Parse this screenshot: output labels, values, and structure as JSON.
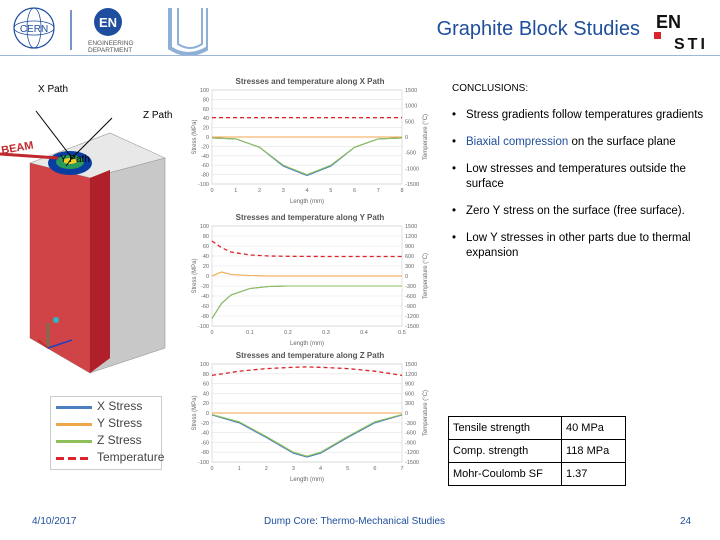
{
  "header": {
    "title": "Graphite Block Studies",
    "logo_cern": "CERN",
    "logo_en": "EN",
    "logo_en_sub1": "ENGINEERING",
    "logo_en_sub2": "DEPARTMENT",
    "logo_ensti_top": "EN",
    "logo_ensti_bottom": "STI"
  },
  "diagram": {
    "x_path": "X Path",
    "z_path": "Z Path",
    "y_path": "Y Path",
    "beam": "BEAM"
  },
  "charts": [
    {
      "title": "Stresses and temperature along X Path",
      "xlabel": "Length (mm)",
      "ylabel_left": "Stress (MPa)",
      "ylabel_right": "Temperature (°C)",
      "left_ticks": [
        "100",
        "80",
        "60",
        "40",
        "20",
        "0",
        "-20",
        "-40",
        "-60",
        "-80",
        "-100"
      ],
      "right_ticks": [
        "1500",
        "1000",
        "500",
        "0",
        "-500",
        "-1000",
        "-1500"
      ],
      "x_ticks": [
        "0",
        "1",
        "2",
        "3",
        "4",
        "5",
        "6",
        "7",
        "8"
      ]
    },
    {
      "title": "Stresses and temperature along Y Path",
      "xlabel": "Length (mm)",
      "ylabel_left": "Stress (MPa)",
      "ylabel_right": "Temperature (°C)",
      "left_ticks": [
        "100",
        "80",
        "60",
        "40",
        "20",
        "0",
        "-20",
        "-40",
        "-60",
        "-80",
        "-100"
      ],
      "right_ticks": [
        "1500",
        "1200",
        "900",
        "600",
        "300",
        "0",
        "-300",
        "-600",
        "-900",
        "-1200",
        "-1500"
      ],
      "x_ticks": [
        "0",
        "0.1",
        "0.2",
        "0.3",
        "0.4",
        "0.5"
      ]
    },
    {
      "title": "Stresses and temperature along Z Path",
      "xlabel": "Length (mm)",
      "ylabel_left": "Stress (MPa)",
      "ylabel_right": "Temperature (°C)",
      "left_ticks": [
        "100",
        "80",
        "60",
        "40",
        "20",
        "0",
        "-20",
        "-40",
        "-60",
        "-80",
        "-100"
      ],
      "right_ticks": [
        "1500",
        "1200",
        "900",
        "600",
        "300",
        "0",
        "-300",
        "-600",
        "-900",
        "-1200",
        "-1500"
      ],
      "x_ticks": [
        "0",
        "1",
        "2",
        "3",
        "4",
        "5",
        "6",
        "7"
      ]
    }
  ],
  "chart_data": [
    {
      "type": "line",
      "title": "Stresses and temperature along X Path",
      "xlabel": "Length (mm)",
      "ylabel": "Stress (MPa)",
      "y2label": "Temperature (°C)",
      "xlim": [
        0,
        8
      ],
      "ylim": [
        -100,
        100
      ],
      "y2lim": [
        -1500,
        1500
      ],
      "x": [
        0,
        1,
        2,
        3,
        4,
        5,
        6,
        7,
        8
      ],
      "series": [
        {
          "name": "X Stress",
          "axis": "left",
          "values": [
            -2,
            -4,
            -22,
            -62,
            -82,
            -62,
            -22,
            -4,
            -2
          ]
        },
        {
          "name": "Y Stress",
          "axis": "left",
          "values": [
            0,
            0,
            0,
            0,
            0,
            0,
            0,
            0,
            0
          ]
        },
        {
          "name": "Z Stress",
          "axis": "left",
          "values": [
            -2,
            -4,
            -22,
            -60,
            -80,
            -60,
            -22,
            -4,
            -2
          ]
        },
        {
          "name": "Temperature",
          "axis": "right",
          "values": [
            620,
            620,
            620,
            620,
            620,
            620,
            620,
            620,
            620
          ]
        }
      ]
    },
    {
      "type": "line",
      "title": "Stresses and temperature along Y Path",
      "xlabel": "Length (mm)",
      "ylabel": "Stress (MPa)",
      "y2label": "Temperature (°C)",
      "xlim": [
        0,
        0.5
      ],
      "ylim": [
        -100,
        100
      ],
      "y2lim": [
        -1500,
        1500
      ],
      "x": [
        0,
        0.025,
        0.05,
        0.1,
        0.15,
        0.2,
        0.3,
        0.4,
        0.5
      ],
      "series": [
        {
          "name": "X Stress",
          "axis": "left",
          "values": [
            -85,
            -55,
            -38,
            -25,
            -21,
            -20,
            -20,
            -20,
            -20
          ]
        },
        {
          "name": "Y Stress",
          "axis": "left",
          "values": [
            0,
            8,
            3,
            1,
            0,
            0,
            0,
            0,
            0
          ]
        },
        {
          "name": "Z Stress",
          "axis": "left",
          "values": [
            -85,
            -55,
            -38,
            -25,
            -21,
            -20,
            -20,
            -20,
            -20
          ]
        },
        {
          "name": "Temperature",
          "axis": "right",
          "values": [
            1050,
            850,
            720,
            630,
            600,
            590,
            585,
            585,
            585
          ]
        }
      ]
    },
    {
      "type": "line",
      "title": "Stresses and temperature along Z Path",
      "xlabel": "Length (mm)",
      "ylabel": "Stress (MPa)",
      "y2label": "Temperature (°C)",
      "xlim": [
        0,
        7
      ],
      "ylim": [
        -100,
        100
      ],
      "y2lim": [
        -1500,
        1500
      ],
      "x": [
        0,
        1,
        2,
        3,
        3.5,
        4,
        5,
        6,
        7
      ],
      "series": [
        {
          "name": "X Stress",
          "axis": "left",
          "values": [
            -4,
            -20,
            -50,
            -82,
            -90,
            -82,
            -50,
            -20,
            -4
          ]
        },
        {
          "name": "Y Stress",
          "axis": "left",
          "values": [
            0,
            0,
            0,
            0,
            0,
            0,
            0,
            0,
            0
          ]
        },
        {
          "name": "Z Stress",
          "axis": "left",
          "values": [
            -3,
            -18,
            -48,
            -80,
            -88,
            -80,
            -48,
            -18,
            -3
          ]
        },
        {
          "name": "Temperature",
          "axis": "right",
          "values": [
            1150,
            1280,
            1360,
            1400,
            1410,
            1400,
            1360,
            1280,
            1150
          ]
        }
      ]
    }
  ],
  "legend": [
    {
      "label": "X Stress",
      "color": "#4a7fc1",
      "dashed": false
    },
    {
      "label": "Y Stress",
      "color": "#f0a64a",
      "dashed": false
    },
    {
      "label": "Z Stress",
      "color": "#8fbf5a",
      "dashed": false
    },
    {
      "label": "Temperature",
      "color": "#d9252a",
      "dashed": true
    }
  ],
  "conclusions": {
    "title": "CONCLUSIONS:",
    "b1": "Stress gradients follow temperatures gradients",
    "b2_accent": "Biaxial compression",
    "b2_rest": " on the surface plane",
    "b3": "Low stresses and temperatures outside the surface",
    "b4": "Zero Y stress on the surface (free surface).",
    "b5": "Low Y stresses in other parts due to thermal expansion"
  },
  "properties": [
    {
      "label": "Tensile strength",
      "value": "40 MPa"
    },
    {
      "label": "Comp. strength",
      "value": "118 MPa"
    },
    {
      "label": "Mohr-Coulomb SF",
      "value": "1.37"
    }
  ],
  "footer": {
    "date": "4/10/2017",
    "center": "Dump Core: Thermo-Mechanical Studies",
    "page": "24"
  },
  "colors": {
    "accent": "#1f4e9e",
    "beam": "#c0282d",
    "block": "#c8282d"
  }
}
